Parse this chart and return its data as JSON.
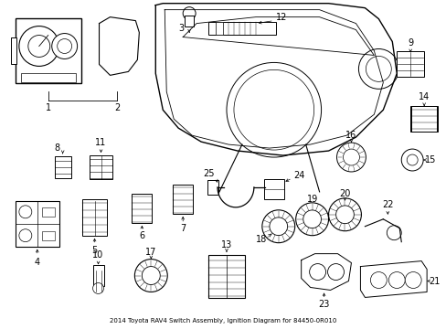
{
  "title": "2014 Toyota RAV4 Switch Assembly, Ignition Diagram for 84450-0R010",
  "background_color": "#ffffff",
  "line_color": "#000000",
  "fig_width": 4.89,
  "fig_height": 3.6,
  "dpi": 100
}
